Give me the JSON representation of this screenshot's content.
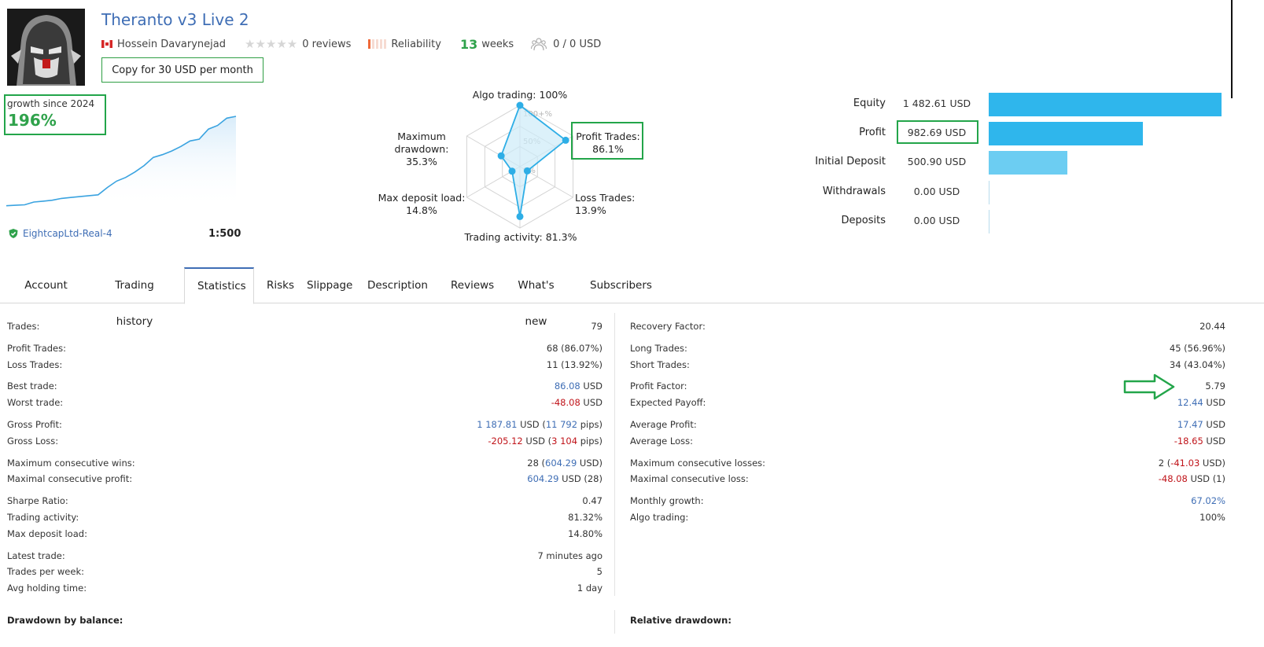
{
  "header": {
    "title": "Theranto v3 Live 2",
    "author": "Hossein Davarynejad",
    "stars": "★★★★★",
    "reviews": "0 reviews",
    "reliability_label": "Reliability",
    "reliability_level": 0.2,
    "weeks_value": "13",
    "weeks_label": "weeks",
    "subscribers_funds": "0 / 0 USD",
    "copy_button": "Copy for 30 USD per month"
  },
  "growth": {
    "label": "growth since 2024",
    "value": "196%",
    "curve": [
      2,
      2.5,
      3,
      6,
      7,
      8,
      10,
      11,
      12,
      13,
      14,
      22,
      29,
      33,
      39,
      46,
      55,
      58,
      62,
      67,
      73,
      75,
      86,
      90,
      98,
      100
    ],
    "broker": "EightcapLtd-Real-4",
    "leverage": "1:500"
  },
  "radar": {
    "axes": [
      {
        "label": "Algo trading: 100%",
        "value": 100
      },
      {
        "label": "Profit Trades:",
        "label2": "86.1%",
        "value": 86.1
      },
      {
        "label": "Loss Trades: 13.9%",
        "value": 13.9
      },
      {
        "label": "Trading activity: 81.3%",
        "value": 81.3
      },
      {
        "label": "Max deposit load:",
        "label2": "14.8%",
        "value": 14.8
      },
      {
        "label": "Maximum",
        "label2": "drawdown: 35.3%",
        "value": 35.3
      }
    ],
    "ring_labels": [
      "100+%",
      "50%",
      "0%"
    ],
    "colors": {
      "line": "#2eaee6",
      "fill": "#cdebf8",
      "grid": "#d4d4d4"
    }
  },
  "financials": [
    {
      "label": "Equity",
      "value": "1 482.61 USD",
      "amount": 1482.61,
      "color": "#2fb6ec"
    },
    {
      "label": "Profit",
      "value": "982.69 USD",
      "amount": 982.69,
      "color": "#2fb6ec"
    },
    {
      "label": "Initial Deposit",
      "value": "500.90 USD",
      "amount": 500.9,
      "color": "#6ccdf2"
    },
    {
      "label": "Withdrawals",
      "value": "0.00 USD",
      "amount": 0,
      "color": "#2fb6ec"
    },
    {
      "label": "Deposits",
      "value": "0.00 USD",
      "amount": 0,
      "color": "#2fb6ec"
    }
  ],
  "tabs": [
    "Account",
    "Trading history",
    "Statistics",
    "Risks",
    "Slippage",
    "Description",
    "Reviews",
    "What's new",
    "Subscribers"
  ],
  "active_tab": "Statistics",
  "stats_left": [
    {
      "label": "Trades:",
      "parts": [
        {
          "t": "79"
        }
      ]
    },
    {
      "label": "Profit Trades:",
      "parts": [
        {
          "t": "68 (86.07%)"
        }
      ]
    },
    {
      "label": "Loss Trades:",
      "parts": [
        {
          "t": "11 (13.92%)"
        }
      ]
    },
    {
      "label": "Best trade:",
      "parts": [
        {
          "t": "86.08",
          "c": "blue"
        },
        {
          "t": " USD"
        }
      ]
    },
    {
      "label": "Worst trade:",
      "parts": [
        {
          "t": "-48.08",
          "c": "red"
        },
        {
          "t": " USD"
        }
      ]
    },
    {
      "label": "Gross Profit:",
      "parts": [
        {
          "t": "1 187.81",
          "c": "blue"
        },
        {
          "t": " USD ("
        },
        {
          "t": "11 792",
          "c": "blue"
        },
        {
          "t": " pips)"
        }
      ]
    },
    {
      "label": "Gross Loss:",
      "parts": [
        {
          "t": "-205.12",
          "c": "red"
        },
        {
          "t": " USD ("
        },
        {
          "t": "3 104",
          "c": "red"
        },
        {
          "t": " pips)"
        }
      ]
    },
    {
      "label": "Maximum consecutive wins:",
      "parts": [
        {
          "t": "28 ("
        },
        {
          "t": "604.29",
          "c": "blue"
        },
        {
          "t": " USD)"
        }
      ]
    },
    {
      "label": "Maximal consecutive profit:",
      "parts": [
        {
          "t": "604.29",
          "c": "blue"
        },
        {
          "t": " USD (28)"
        }
      ]
    },
    {
      "label": "Sharpe Ratio:",
      "parts": [
        {
          "t": "0.47"
        }
      ]
    },
    {
      "label": "Trading activity:",
      "parts": [
        {
          "t": "81.32%"
        }
      ]
    },
    {
      "label": "Max deposit load:",
      "parts": [
        {
          "t": "14.80%"
        }
      ]
    },
    {
      "label": "Latest trade:",
      "parts": [
        {
          "t": "7 minutes ago"
        }
      ]
    },
    {
      "label": "Trades per week:",
      "parts": [
        {
          "t": "5"
        }
      ]
    },
    {
      "label": "Avg holding time:",
      "parts": [
        {
          "t": "1 day"
        }
      ]
    }
  ],
  "stats_right": [
    {
      "label": "Recovery Factor:",
      "parts": [
        {
          "t": "20.44"
        }
      ]
    },
    {
      "label": "Long Trades:",
      "parts": [
        {
          "t": "45 (56.96%)"
        }
      ]
    },
    {
      "label": "Short Trades:",
      "parts": [
        {
          "t": "34 (43.04%)"
        }
      ]
    },
    {
      "label": "Profit Factor:",
      "parts": [
        {
          "t": "5.79"
        }
      ]
    },
    {
      "label": "Expected Payoff:",
      "parts": [
        {
          "t": "12.44",
          "c": "blue"
        },
        {
          "t": " USD"
        }
      ]
    },
    {
      "label": "Average Profit:",
      "parts": [
        {
          "t": "17.47",
          "c": "blue"
        },
        {
          "t": " USD"
        }
      ]
    },
    {
      "label": "Average Loss:",
      "parts": [
        {
          "t": "-18.65",
          "c": "red"
        },
        {
          "t": " USD"
        }
      ]
    },
    {
      "label": "Maximum consecutive losses:",
      "parts": [
        {
          "t": "2 ("
        },
        {
          "t": "-41.03",
          "c": "red"
        },
        {
          "t": " USD)"
        }
      ]
    },
    {
      "label": "Maximal consecutive loss:",
      "parts": [
        {
          "t": "-48.08",
          "c": "red"
        },
        {
          "t": " USD (1)"
        }
      ]
    },
    {
      "label": "Monthly growth:",
      "parts": [
        {
          "t": "67.02%",
          "c": "blue"
        }
      ]
    },
    {
      "label": "Algo trading:",
      "parts": [
        {
          "t": "100%"
        }
      ]
    }
  ],
  "section_headers": {
    "left": "Drawdown by balance:",
    "right": "Relative drawdown:"
  },
  "colors": {
    "accent": "#3f6eb5",
    "green": "#2fa24b",
    "highlight": "#23a54a",
    "red": "#c0141a"
  }
}
